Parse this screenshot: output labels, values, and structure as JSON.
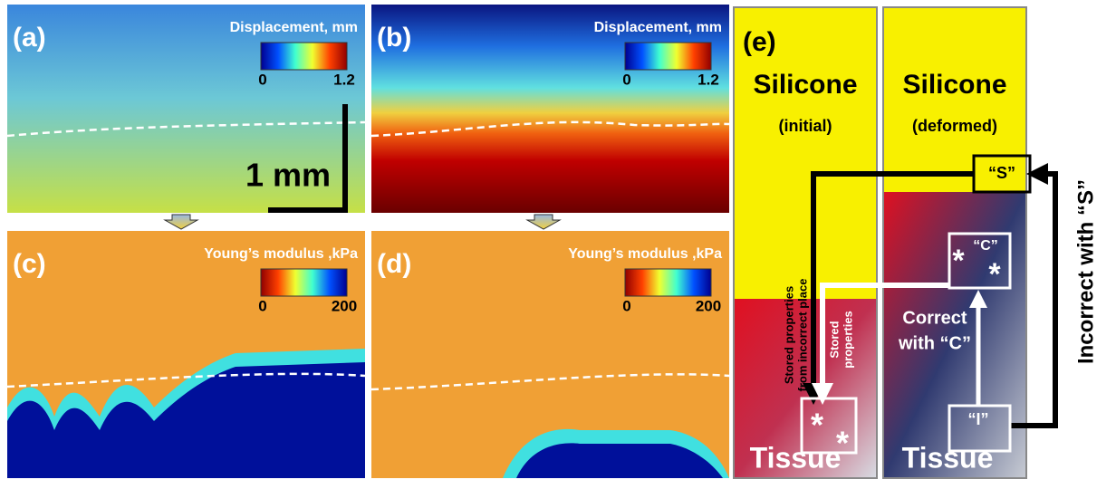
{
  "panels": [
    {
      "label": "(a)",
      "title": "Displacement, mm",
      "colorbar": {
        "min": 0,
        "max": 1.2
      },
      "scale_bar": "1 mm"
    },
    {
      "label": "(b)",
      "title": "Displacement, mm",
      "colorbar": {
        "min": 0,
        "max": 1.2
      }
    },
    {
      "label": "(c)",
      "title": "Young’s modulus ,kPa",
      "colorbar": {
        "min": 0,
        "max": 200
      }
    },
    {
      "label": "(d)",
      "title": "Young’s modulus ,kPa",
      "colorbar": {
        "min": 0,
        "max": 200
      }
    }
  ],
  "diagram": {
    "label": "(e)",
    "columns": [
      {
        "top": "Silicone",
        "state": "(initial)",
        "bottom": "Tissue"
      },
      {
        "top": "Silicone",
        "state": "(deformed)",
        "bottom": "Tissue"
      }
    ],
    "marker": "*",
    "box_s": "“S”",
    "box_c": "“C”",
    "box_i": "“I”",
    "stored_incorrect": [
      "Stored properties",
      "from incorrect place"
    ],
    "stored": [
      "Stored",
      "properties"
    ],
    "correct": [
      "Correct",
      "with “C”"
    ],
    "incorrect": "Incorrect with “S”"
  }
}
